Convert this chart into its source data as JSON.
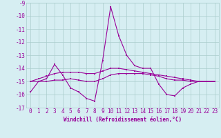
{
  "title": "",
  "xlabel": "Windchill (Refroidissement éolien,°C)",
  "ylabel": "",
  "bg_color": "#d6eef2",
  "line_color": "#990099",
  "grid_color": "#aacccc",
  "xlim": [
    -0.5,
    23.5
  ],
  "ylim": [
    -17,
    -9
  ],
  "yticks": [
    -17,
    -16,
    -15,
    -14,
    -13,
    -12,
    -11,
    -10,
    -9
  ],
  "xticks": [
    0,
    1,
    2,
    3,
    4,
    5,
    6,
    7,
    8,
    9,
    10,
    11,
    12,
    13,
    14,
    15,
    16,
    17,
    18,
    19,
    20,
    21,
    22,
    23
  ],
  "series1_x": [
    0,
    1,
    2,
    3,
    4,
    5,
    6,
    7,
    8,
    9,
    10,
    11,
    12,
    13,
    14,
    15,
    16,
    17,
    18,
    19,
    20,
    21,
    22,
    23
  ],
  "series1_y": [
    -15.8,
    -15.0,
    -14.8,
    -13.7,
    -14.5,
    -15.5,
    -15.8,
    -16.3,
    -16.5,
    -13.4,
    -9.3,
    -11.5,
    -13.0,
    -13.8,
    -14.0,
    -14.0,
    -15.2,
    -16.0,
    -16.1,
    -15.5,
    -15.2,
    -15.0,
    -15.0,
    -15.0
  ],
  "series2_x": [
    0,
    1,
    2,
    3,
    4,
    5,
    6,
    7,
    8,
    9,
    10,
    11,
    12,
    13,
    14,
    15,
    16,
    17,
    18,
    19,
    20,
    21,
    22,
    23
  ],
  "series2_y": [
    -15.0,
    -14.8,
    -14.6,
    -14.4,
    -14.3,
    -14.3,
    -14.3,
    -14.4,
    -14.4,
    -14.2,
    -14.0,
    -14.0,
    -14.1,
    -14.2,
    -14.3,
    -14.4,
    -14.5,
    -14.6,
    -14.7,
    -14.8,
    -14.9,
    -15.0,
    -15.0,
    -15.0
  ],
  "series3_x": [
    0,
    1,
    2,
    3,
    4,
    5,
    6,
    7,
    8,
    9,
    10,
    11,
    12,
    13,
    14,
    15,
    16,
    17,
    18,
    19,
    20,
    21,
    22,
    23
  ],
  "series3_y": [
    -15.0,
    -15.0,
    -15.0,
    -14.9,
    -14.9,
    -14.8,
    -14.9,
    -15.0,
    -15.0,
    -14.8,
    -14.5,
    -14.4,
    -14.4,
    -14.4,
    -14.4,
    -14.5,
    -14.6,
    -14.8,
    -14.9,
    -14.9,
    -15.0,
    -15.0,
    -15.0,
    -15.0
  ],
  "tick_fontsize": 5.5,
  "xlabel_fontsize": 5.5,
  "marker_size": 2.0,
  "linewidth": 0.8
}
